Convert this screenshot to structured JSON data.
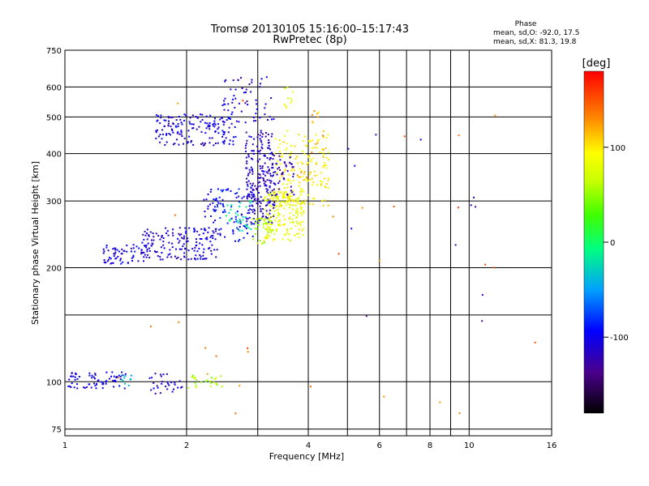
{
  "chart_data": {
    "type": "scatter",
    "title": "Tromsø 20130105 15:16:00–15:17:43",
    "subtitle": "RwPretec (8p)",
    "xlabel": "Frequency [MHz]",
    "ylabel": "Stationary phase Virtual Height [km]",
    "x_scale": "log",
    "y_scale": "log",
    "xlim": [
      1,
      16
    ],
    "ylim": [
      72,
      750
    ],
    "x_ticks": [
      1,
      2,
      4,
      6,
      8,
      10,
      16
    ],
    "x_tick_labels": [
      "1",
      "2",
      "4",
      "6",
      "8",
      "10",
      "16"
    ],
    "x_minor_lines": [
      3,
      5,
      7,
      9
    ],
    "y_ticks": [
      75,
      100,
      200,
      300,
      400,
      500,
      600,
      750
    ],
    "y_tick_labels": [
      "75",
      "100",
      "200",
      "300",
      "400",
      "500",
      "600",
      "750"
    ],
    "y_minor_lines": [
      150
    ],
    "grid": true,
    "stats": {
      "heading": "Phase",
      "line_o": "mean, sd,O: -92.0, 17.5",
      "line_x": "mean, sd,X: 81.3, 19.8"
    },
    "colorbar": {
      "label": "[deg]",
      "range": [
        -180,
        180
      ],
      "ticks": [
        -100,
        0,
        100
      ],
      "tick_labels": [
        "-100",
        "0",
        "100"
      ],
      "colormap": "rainbow"
    },
    "series": [
      {
        "x_range": [
          1.02,
          1.42
        ],
        "y_range": [
          96,
          106
        ],
        "phase": -105,
        "count": 70
      },
      {
        "x_range": [
          1.38,
          1.46
        ],
        "y_range": [
          97,
          104
        ],
        "phase": -40,
        "count": 12
      },
      {
        "x_range": [
          1.62,
          1.95
        ],
        "y_range": [
          93,
          108
        ],
        "phase": -110,
        "count": 30
      },
      {
        "x_range": [
          2.0,
          2.5
        ],
        "y_range": [
          96,
          104
        ],
        "phase": 55,
        "count": 25
      },
      {
        "x_range": [
          1.68,
          2.65
        ],
        "y_range": [
          420,
          510
        ],
        "phase": -105,
        "count": 160
      },
      {
        "x_range": [
          2.45,
          3.3
        ],
        "y_range": [
          480,
          640
        ],
        "phase": -110,
        "count": 60
      },
      {
        "x_range": [
          3.45,
          3.75
        ],
        "y_range": [
          520,
          600
        ],
        "phase": 80,
        "count": 10
      },
      {
        "x_range": [
          1.23,
          1.6
        ],
        "y_range": [
          204,
          230
        ],
        "phase": -105,
        "count": 70
      },
      {
        "x_range": [
          1.55,
          2.4
        ],
        "y_range": [
          210,
          255
        ],
        "phase": -110,
        "count": 150
      },
      {
        "x_range": [
          2.2,
          2.95
        ],
        "y_range": [
          235,
          330
        ],
        "phase": -95,
        "count": 110
      },
      {
        "x_range": [
          2.5,
          2.9
        ],
        "y_range": [
          250,
          300
        ],
        "phase": -15,
        "count": 30
      },
      {
        "x_range": [
          2.8,
          3.3
        ],
        "y_range": [
          260,
          460
        ],
        "phase": -115,
        "count": 220
      },
      {
        "x_range": [
          2.9,
          3.3
        ],
        "y_range": [
          230,
          270
        ],
        "phase": 60,
        "count": 40
      },
      {
        "x_range": [
          3.1,
          3.9
        ],
        "y_range": [
          235,
          320
        ],
        "phase": 85,
        "count": 180
      },
      {
        "x_range": [
          3.3,
          4.5
        ],
        "y_range": [
          290,
          460
        ],
        "phase": 95,
        "count": 170
      },
      {
        "x_range": [
          3.2,
          3.7
        ],
        "y_range": [
          310,
          400
        ],
        "phase": -120,
        "count": 50
      },
      {
        "x_range": [
          3.8,
          4.4
        ],
        "y_range": [
          340,
          520
        ],
        "phase": 120,
        "count": 20
      },
      {
        "x_range": [
          1.3,
          15.5
        ],
        "y_range": [
          78,
          650
        ],
        "phase": 140,
        "count": 30
      },
      {
        "x_range": [
          4.5,
          11
        ],
        "y_range": [
          110,
          460
        ],
        "phase": -115,
        "count": 12
      }
    ]
  }
}
